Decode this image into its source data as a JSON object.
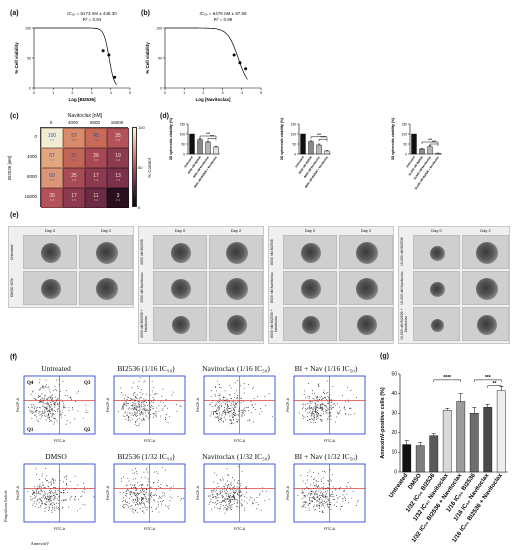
{
  "panels": {
    "a": {
      "label": "(a)",
      "ic50": "IC₅₀ = 8173 nM ± 448.30",
      "r2": "R² = 0.94",
      "xlabel": "Log [BI2536]",
      "ylabel": "% Cell viability",
      "yticks": [
        "0",
        "50",
        "100"
      ],
      "xticks": [
        "0",
        "1",
        "2",
        "3",
        "4",
        "5"
      ]
    },
    "b": {
      "label": "(b)",
      "ic50": "IC₅₀ = 6476 nM ± 97.58",
      "r2": "R² = 0.99",
      "xlabel": "Log [Navitoclax]",
      "ylabel": "% Cell viability",
      "yticks": [
        "0",
        "50",
        "100"
      ],
      "xticks": [
        "0",
        "1",
        "2",
        "3",
        "4",
        "5"
      ]
    },
    "c": {
      "label": "(c)",
      "title": "Navitoclax [nM]",
      "ylabel": "BI2536 [nM]",
      "colorbar_label": "% Control",
      "colorbar_ticks": [
        "100",
        "50",
        "0"
      ],
      "col_labels": [
        "0",
        "4000",
        "8000",
        "16000"
      ],
      "row_labels": [
        "0",
        "4000",
        "8000",
        "16000"
      ],
      "cells": [
        [
          {
            "v": "100",
            "sd": "± 0"
          },
          {
            "v": "57",
            "sd": "± 8"
          },
          {
            "v": "45",
            "sd": "± 8"
          },
          {
            "v": "35",
            "sd": "± 6"
          }
        ],
        [
          {
            "v": "67",
            "sd": "± 7"
          },
          {
            "v": "37",
            "sd": "± 5"
          },
          {
            "v": "26",
            "sd": "± 3"
          },
          {
            "v": "19",
            "sd": "± 4"
          }
        ],
        [
          {
            "v": "60",
            "sd": "± 6"
          },
          {
            "v": "25",
            "sd": "± 4"
          },
          {
            "v": "17",
            "sd": "± 3"
          },
          {
            "v": "13",
            "sd": "± 3"
          }
        ],
        [
          {
            "v": "30",
            "sd": "± 4"
          },
          {
            "v": "17",
            "sd": "± 3"
          },
          {
            "v": "11",
            "sd": "± 2"
          },
          {
            "v": "3",
            "sd": "± 1"
          }
        ]
      ],
      "cell_colors": [
        [
          "#f4ecd2",
          "#d98b6c",
          "#c86a58",
          "#b3525a"
        ],
        [
          "#e4a67f",
          "#c16657",
          "#a84856",
          "#8c3a4f"
        ],
        [
          "#dc9677",
          "#a94a57",
          "#8c3a4f",
          "#7a3149"
        ],
        [
          "#b3525a",
          "#8c3a4f",
          "#6a2b43",
          "#2a0f1f"
        ]
      ]
    },
    "d": {
      "label": "(d)",
      "ylabel": "3D spheroids viability (%)",
      "sig": [
        "***",
        "****"
      ]
    },
    "e": {
      "label": "(e)",
      "day0": "Day 0",
      "day2": "Day 2"
    },
    "f": {
      "label": "(f)",
      "titles_top": [
        "Untreated",
        "BI2536 (1/16 IC₅₀)",
        "Navitoclax (1/16 IC₅₀)",
        "BI + Nav (1/16 IC₅₀)"
      ],
      "titles_bottom": [
        "DMSO",
        "BI2536 (1/32 IC₅₀)",
        "Navitoclax (1/32 IC₅₀)",
        "BI + Nav (1/32 IC₅₀)"
      ],
      "quadrants": [
        "Q4",
        "Q3",
        "Q1",
        "Q2"
      ],
      "xaxis": "FITC-A",
      "yaxis": "PerCP-A",
      "outer_y": "Propidium Iodide",
      "outer_x": "AnnexinV"
    },
    "g": {
      "label": "(g)",
      "ylabel": "AnnexinV-positive cells (%)",
      "yticks": [
        "0",
        "10",
        "20",
        "30",
        "40",
        "50"
      ],
      "sig": [
        "****",
        "***",
        "**"
      ]
    }
  },
  "chart_data": [
    {
      "type": "scatter",
      "panel": "a",
      "xlabel": "Log [BI2536]",
      "ylabel": "% Cell viability",
      "x": [
        3.6,
        3.9,
        4.2
      ],
      "y": [
        62,
        55,
        18
      ],
      "xlim": [
        0,
        5
      ],
      "ylim": [
        0,
        100
      ]
    },
    {
      "type": "scatter",
      "panel": "b",
      "xlabel": "Log [Navitoclax]",
      "ylabel": "% Cell viability",
      "x": [
        3.6,
        3.9,
        4.2
      ],
      "y": [
        55,
        42,
        32
      ],
      "xlim": [
        0,
        5
      ],
      "ylim": [
        0,
        100
      ]
    },
    {
      "type": "bar",
      "panel": "d1",
      "ylabel": "3D spheroids viability (%)",
      "categories": [
        "Untreated",
        "4000 nM BI2536",
        "4000 nM Navitoclax",
        "4000 nM BI2536 + Navitoclax"
      ],
      "values": [
        100,
        72,
        60,
        35
      ],
      "errors": [
        0,
        6,
        3,
        4
      ],
      "colors": [
        "#111111",
        "#8a8a8a",
        "#b5b5b5",
        "#e0e0e0"
      ],
      "ylim": [
        0,
        150
      ]
    },
    {
      "type": "bar",
      "panel": "d2",
      "ylabel": "3D spheroids viability (%)",
      "categories": [
        "Untreated",
        "8000 nM BI2536",
        "8000 nM Navitoclax",
        "8000 nM BI2536 + Navitoclax"
      ],
      "values": [
        100,
        62,
        45,
        15
      ],
      "errors": [
        0,
        4,
        5,
        3
      ],
      "colors": [
        "#111111",
        "#8a8a8a",
        "#b5b5b5",
        "#e0e0e0"
      ],
      "ylim": [
        0,
        150
      ]
    },
    {
      "type": "bar",
      "panel": "d3",
      "ylabel": "3D spheroids viability (%)",
      "categories": [
        "Untreated",
        "16,000 nM BI2536",
        "16,000 nM Navitoclax",
        "16,000 nM BI2536 + Navitoclax"
      ],
      "values": [
        100,
        25,
        36,
        4
      ],
      "errors": [
        0,
        3,
        6,
        1
      ],
      "colors": [
        "#111111",
        "#8a8a8a",
        "#b5b5b5",
        "#e0e0e0"
      ],
      "ylim": [
        0,
        150
      ]
    },
    {
      "type": "bar",
      "panel": "g",
      "ylabel": "AnnexinV-positive cells (%)",
      "categories": [
        "Untreated",
        "DMSO",
        "1/32 IC₅₀ BI2536",
        "1/32 IC₅₀ Navitoclax",
        "1/32 IC₅₀ BI2536 + Navitoclax",
        "1/16 IC₅₀ BI2536",
        "1/16 IC₅₀ Navitoclax",
        "1/16 IC₅₀ BI2536 + Navitoclax"
      ],
      "values": [
        14,
        13.5,
        18.5,
        31.5,
        36,
        30,
        33,
        41.5
      ],
      "errors": [
        2,
        1.5,
        1,
        1,
        4,
        3,
        1.5,
        2
      ],
      "colors": [
        "#111111",
        "#7f7f7f",
        "#5a5a5a",
        "#d9d9d9",
        "#9c9c9c",
        "#6d6d6d",
        "#4a4a4a",
        "#ededed"
      ],
      "ylim": [
        0,
        50
      ]
    }
  ],
  "spheroids": {
    "groups": [
      {
        "rows": [
          "Untreated",
          "DMSO 40%"
        ]
      },
      {
        "rows": [
          "4000 nM BI2536",
          "4000 nM Navitoclax",
          "4000 nM BI2536 + Navitoclax"
        ]
      },
      {
        "rows": [
          "8000 nM BI2536",
          "8000 nM Navitoclax",
          "8000 nM BI2536 + Navitoclax"
        ]
      },
      {
        "rows": [
          "16,000 nM BI2536",
          "16,000 nM Navitoclax",
          "16,000 nM BI2536 + Navitoclax"
        ]
      }
    ]
  }
}
